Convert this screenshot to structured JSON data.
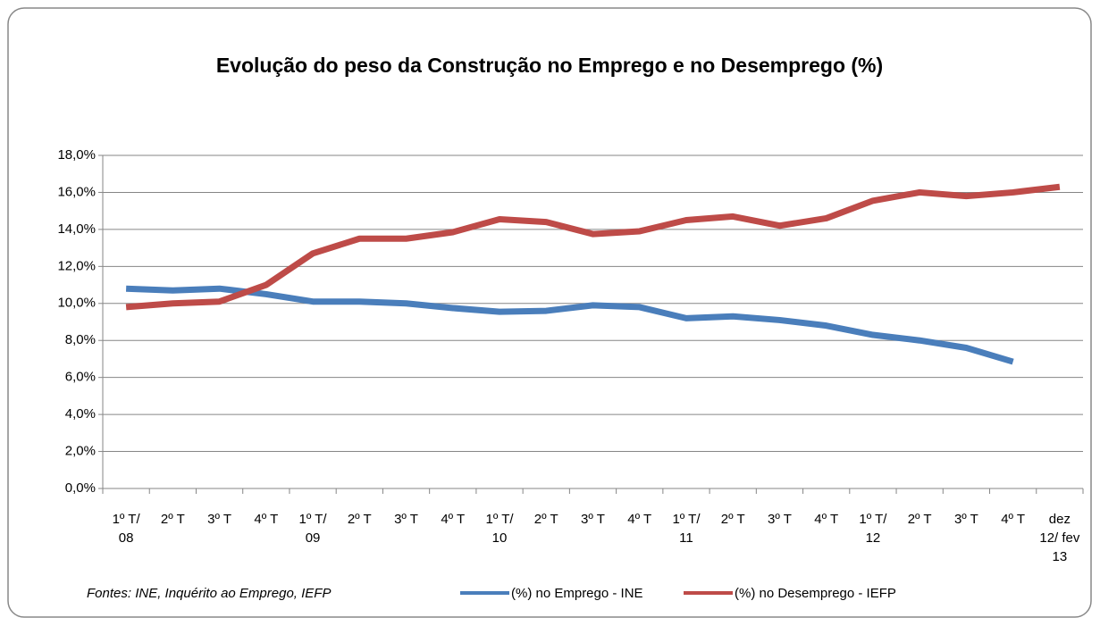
{
  "chart_data": {
    "type": "line",
    "title": "Evolução do peso da Construção no Emprego e no Desemprego (%)",
    "source": "Fontes: INE, Inquérito ao Emprego,  IEFP",
    "categories": [
      "1º T/ 08",
      "2º T",
      "3º T",
      "4º T",
      "1º T/ 09",
      "2º T",
      "3º T",
      "4º T",
      "1º T/ 10",
      "2º T",
      "3º T",
      "4º T",
      "1º T/ 11",
      "2º T",
      "3º T",
      "4º T",
      "1º T/ 12",
      "2º T",
      "3º T",
      "4º T",
      "dez 12/ fev 13"
    ],
    "series": [
      {
        "name": "(%) no Emprego - INE",
        "color": "#4a7ebb",
        "values": [
          10.8,
          10.7,
          10.8,
          10.5,
          10.1,
          10.1,
          10.0,
          9.75,
          9.55,
          9.6,
          9.9,
          9.8,
          9.2,
          9.3,
          9.1,
          8.8,
          8.3,
          8.0,
          7.6,
          6.85,
          null
        ]
      },
      {
        "name": "(%) no Desemprego - IEFP",
        "color": "#be4b48",
        "values": [
          9.8,
          10.0,
          10.1,
          11.0,
          12.7,
          13.5,
          13.5,
          13.85,
          14.55,
          14.4,
          13.75,
          13.9,
          14.5,
          14.7,
          14.2,
          14.6,
          15.55,
          16.0,
          15.8,
          16.0,
          16.3
        ]
      }
    ],
    "ylim": [
      0,
      18
    ],
    "yticks": [
      {
        "value": 0,
        "label": "0,0%"
      },
      {
        "value": 2,
        "label": "2,0%"
      },
      {
        "value": 4,
        "label": "4,0%"
      },
      {
        "value": 6,
        "label": "6,0%"
      },
      {
        "value": 8,
        "label": "8,0%"
      },
      {
        "value": 10,
        "label": "10,0%"
      },
      {
        "value": 12,
        "label": "12,0%"
      },
      {
        "value": 14,
        "label": "14,0%"
      },
      {
        "value": 16,
        "label": "16,0%"
      },
      {
        "value": 18,
        "label": "18,0%"
      }
    ],
    "grid": true
  }
}
